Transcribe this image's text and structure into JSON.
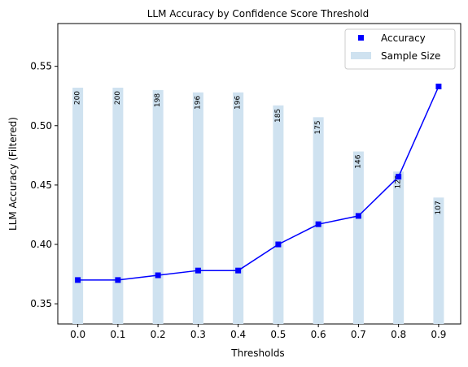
{
  "chart_data": {
    "type": "line",
    "title": "LLM Accuracy by Confidence Score Threshold",
    "xlabel": "Thresholds",
    "ylabel": "LLM Accuracy (Filtered)",
    "x": [
      0.0,
      0.1,
      0.2,
      0.3,
      0.4,
      0.5,
      0.6,
      0.7,
      0.8,
      0.9
    ],
    "x_tick_labels": [
      "0.0",
      "0.1",
      "0.2",
      "0.3",
      "0.4",
      "0.5",
      "0.6",
      "0.7",
      "0.8",
      "0.9"
    ],
    "y_ticks": [
      0.35,
      0.4,
      0.45,
      0.5,
      0.55
    ],
    "y_tick_labels": [
      "0.35",
      "0.40",
      "0.45",
      "0.50",
      "0.55"
    ],
    "xlim": [
      -0.05,
      0.955
    ],
    "ylim": [
      0.333,
      0.586
    ],
    "grid": false,
    "legend_position": "top-right",
    "series": [
      {
        "name": "Accuracy",
        "kind": "line-markers",
        "color": "#0000ff",
        "values": [
          0.37,
          0.37,
          0.374,
          0.378,
          0.378,
          0.4,
          0.417,
          0.424,
          0.457,
          0.533
        ]
      },
      {
        "name": "Sample Size",
        "kind": "bar",
        "color": "#cfe2f0",
        "values": [
          200,
          200,
          198,
          196,
          196,
          185,
          175,
          146,
          129,
          107
        ],
        "value_labels": [
          "200",
          "200",
          "198",
          "196",
          "196",
          "185",
          "175",
          "146",
          "129",
          "107"
        ]
      }
    ]
  }
}
